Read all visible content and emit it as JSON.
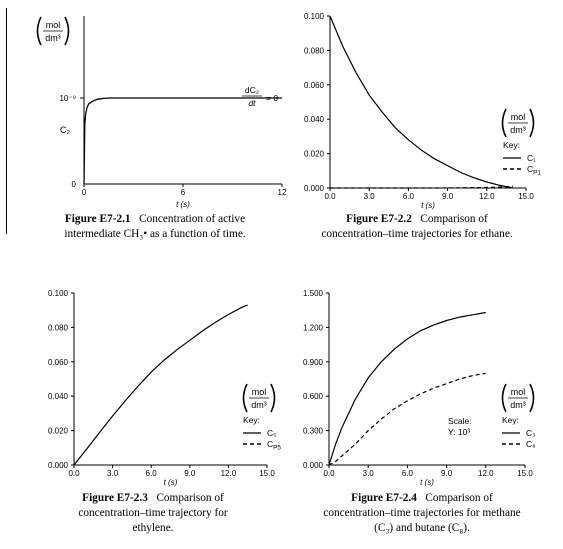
{
  "chart_data": [
    {
      "id": "E7-2.1",
      "type": "line",
      "x_ticks": [
        "0",
        "6",
        "12"
      ],
      "xlim": [
        0,
        12
      ],
      "xlabel": "t (s)",
      "y_tick": "10⁻⁹",
      "ylabel": "C₂",
      "y_unit_num": "mol",
      "y_unit_den": "dm³",
      "annotation_num": "dC₂",
      "annotation_den": "dt",
      "annotation_eq": "= 0",
      "series": [
        {
          "x": [
            0,
            0.05,
            0.1,
            0.2,
            0.3,
            0.5,
            0.8,
            1.2,
            1.6,
            2.0,
            3,
            6,
            9,
            12
          ],
          "y": [
            0,
            0.7,
            0.82,
            0.9,
            0.935,
            0.96,
            0.985,
            0.995,
            1.0,
            1.0,
            1.0,
            1.0,
            1.0,
            1.0
          ]
        }
      ],
      "caption_label": "Figure E7-2.1",
      "caption_lines": [
        "Concentration of active",
        "intermediate CH₃• as a function of time."
      ]
    },
    {
      "id": "E7-2.2",
      "type": "line",
      "x_ticks": [
        "0.0",
        "3.0",
        "6.0",
        "9.0",
        "12.0",
        "15.0"
      ],
      "y_ticks": [
        "0.000",
        "0.020",
        "0.040",
        "0.060",
        "0.080",
        "0.100"
      ],
      "xlim": [
        0,
        15
      ],
      "ylim": [
        0,
        0.1
      ],
      "xlabel": "t (s)",
      "unit_num": "mol",
      "unit_den": "dm³",
      "key_title": "Key:",
      "legend": [
        "C₁",
        "C_P1"
      ],
      "series": [
        {
          "name": "C₁",
          "style": "solid",
          "x": [
            0,
            1,
            2,
            3,
            4,
            5,
            6,
            7,
            8,
            9,
            10,
            11,
            12,
            13,
            14
          ],
          "y": [
            0.1,
            0.082,
            0.067,
            0.054,
            0.044,
            0.035,
            0.028,
            0.022,
            0.017,
            0.013,
            0.009,
            0.006,
            0.0035,
            0.0015,
            0.0
          ]
        },
        {
          "name": "C_P1",
          "style": "dashed",
          "x": [
            0,
            2,
            4,
            6,
            8,
            10,
            12,
            13,
            14
          ],
          "y": [
            0,
            0,
            0,
            0,
            0,
            0.0001,
            0.0003,
            0.0006,
            0.001
          ]
        }
      ],
      "caption_label": "Figure E7-2.2",
      "caption_lines": [
        "Comparison of",
        "concentration–time trajectories for ethane."
      ]
    },
    {
      "id": "E7-2.3",
      "type": "line",
      "x_ticks": [
        "0.0",
        "3.0",
        "6.0",
        "9.0",
        "12.0",
        "15.0"
      ],
      "y_ticks": [
        "0.000",
        "0.020",
        "0.040",
        "0.060",
        "0.080",
        "0.100"
      ],
      "xlim": [
        0,
        15
      ],
      "ylim": [
        0,
        0.1
      ],
      "xlabel": "t (s)",
      "unit_num": "mol",
      "unit_den": "dm³",
      "key_title": "Key:",
      "legend": [
        "C₅",
        "C_P5"
      ],
      "series": [
        {
          "name": "C₅",
          "style": "solid",
          "x": [
            0,
            1,
            2,
            3,
            4,
            5,
            6,
            7,
            8,
            9,
            10,
            11,
            12,
            13,
            13.5
          ],
          "y": [
            0,
            0.0095,
            0.019,
            0.0285,
            0.0375,
            0.046,
            0.054,
            0.061,
            0.067,
            0.0725,
            0.078,
            0.083,
            0.0875,
            0.0915,
            0.093
          ]
        }
      ],
      "caption_label": "Figure E7-2.3",
      "caption_lines": [
        "Comparison of",
        "concentration–time trajectory for",
        "ethylene."
      ]
    },
    {
      "id": "E7-2.4",
      "type": "line",
      "x_ticks": [
        "0.0",
        "3.0",
        "6.0",
        "9.0",
        "12.0",
        "15.0"
      ],
      "y_ticks": [
        "0.000",
        "0.300",
        "0.600",
        "0.900",
        "1.200",
        "1.500"
      ],
      "xlim": [
        0,
        15
      ],
      "ylim": [
        0,
        1.5
      ],
      "xlabel": "t (s)",
      "unit_num": "mol",
      "unit_den": "dm³",
      "key_title": "Key:",
      "scale_line1": "Scale:",
      "scale_line2": "Y: 10³",
      "legend": [
        "C₃",
        "C₈"
      ],
      "series": [
        {
          "name": "C₃",
          "style": "solid",
          "x": [
            0,
            0.5,
            1,
            2,
            3,
            4,
            5,
            6,
            7,
            8,
            9,
            10,
            11,
            12
          ],
          "y": [
            0,
            0.18,
            0.33,
            0.57,
            0.76,
            0.9,
            1.01,
            1.1,
            1.17,
            1.22,
            1.26,
            1.29,
            1.31,
            1.33
          ]
        },
        {
          "name": "C₈",
          "style": "dashed",
          "x": [
            0,
            0.5,
            1,
            2,
            3,
            4,
            5,
            6,
            7,
            8,
            9,
            10,
            11,
            12
          ],
          "y": [
            0,
            0.03,
            0.08,
            0.18,
            0.3,
            0.4,
            0.49,
            0.56,
            0.62,
            0.67,
            0.71,
            0.75,
            0.78,
            0.8
          ]
        }
      ],
      "caption_label": "Figure E7-2.4",
      "caption_lines": [
        "Comparison of",
        "concentration–time trajectories for methane",
        "(C₃) and butane (C₈)."
      ]
    }
  ]
}
